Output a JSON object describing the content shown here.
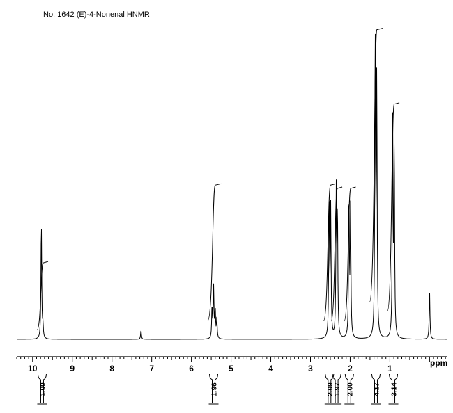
{
  "chart_data": {
    "type": "line",
    "title": "No. 1642 (E)-4-Nonenal HNMR",
    "xlabel": "ppm",
    "xlim": [
      10.4,
      -0.45
    ],
    "x_ticks": [
      10,
      9,
      8,
      7,
      6,
      5,
      4,
      3,
      2,
      1
    ],
    "x_tick_labels": [
      "10",
      "9",
      "8",
      "7",
      "6",
      "5",
      "4",
      "3",
      "2",
      "1"
    ],
    "grid": false,
    "ylim": [
      0,
      100
    ],
    "peaks": [
      {
        "ppm": 9.78,
        "height": 37
      },
      {
        "ppm": 9.74,
        "height": 4
      },
      {
        "ppm": 7.27,
        "height": 3
      },
      {
        "ppm": 5.48,
        "height": 10
      },
      {
        "ppm": 5.44,
        "height": 16
      },
      {
        "ppm": 5.4,
        "height": 9
      },
      {
        "ppm": 5.36,
        "height": 6
      },
      {
        "ppm": 2.53,
        "height": 45
      },
      {
        "ppm": 2.49,
        "height": 40
      },
      {
        "ppm": 2.35,
        "height": 45
      },
      {
        "ppm": 2.32,
        "height": 38
      },
      {
        "ppm": 2.03,
        "height": 45
      },
      {
        "ppm": 1.99,
        "height": 40
      },
      {
        "ppm": 1.37,
        "height": 95
      },
      {
        "ppm": 1.33,
        "height": 80
      },
      {
        "ppm": 0.93,
        "height": 68
      },
      {
        "ppm": 0.89,
        "height": 60
      },
      {
        "ppm": 0.0,
        "height": 15
      }
    ],
    "integration_curves": [
      {
        "start_ppm": 9.82,
        "end_ppm": 9.68,
        "rise": 24
      },
      {
        "start_ppm": 5.52,
        "end_ppm": 5.32,
        "rise": 48
      },
      {
        "start_ppm": 2.6,
        "end_ppm": 2.43,
        "rise": 48
      },
      {
        "start_ppm": 2.41,
        "end_ppm": 2.27,
        "rise": 47
      },
      {
        "start_ppm": 2.08,
        "end_ppm": 1.93,
        "rise": 47
      },
      {
        "start_ppm": 1.44,
        "end_ppm": 1.25,
        "rise": 96
      },
      {
        "start_ppm": 0.99,
        "end_ppm": 0.83,
        "rise": 73
      }
    ],
    "integrals": [
      {
        "ppm": 9.76,
        "label": "1.00"
      },
      {
        "ppm": 5.44,
        "label": "1.96"
      },
      {
        "ppm": 2.52,
        "label": "2.09"
      },
      {
        "ppm": 2.34,
        "label": "1.97"
      },
      {
        "ppm": 2.02,
        "label": "2.00"
      },
      {
        "ppm": 1.35,
        "label": "4.17"
      },
      {
        "ppm": 0.91,
        "label": "3.14"
      }
    ]
  }
}
